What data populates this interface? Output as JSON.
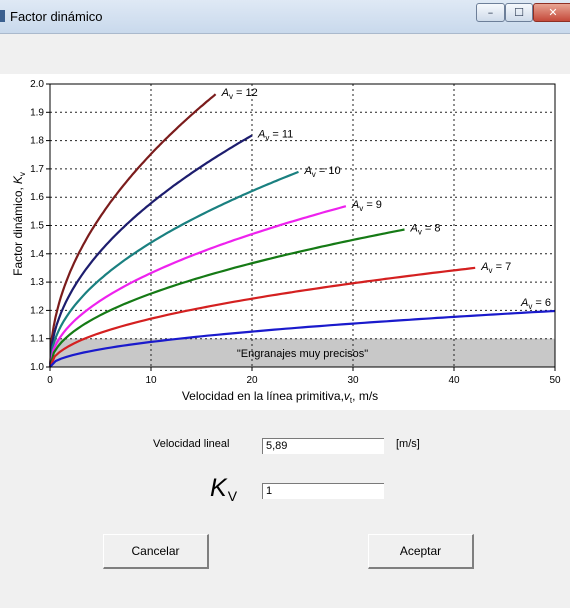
{
  "window": {
    "title": "Factor dinámico",
    "buttons": {
      "minimize": "–",
      "maximize": "☐",
      "close": "✕"
    }
  },
  "chart_data": {
    "type": "line",
    "xlabel": "Velocidad en la línea primitiva,",
    "xlabel_var": "v",
    "xlabel_sub": "t",
    "xlabel_unit": ", m/s",
    "ylabel": "Factor dinámico,",
    "ylabel_var": "K",
    "ylabel_sub": "v",
    "xlim": [
      0,
      50
    ],
    "ylim": [
      1.0,
      2.0
    ],
    "xticks": [
      "0",
      "10",
      "20",
      "30",
      "40",
      "50"
    ],
    "yticks": [
      "1.0",
      "1.1",
      "1.2",
      "1.3",
      "1.4",
      "1.5",
      "1.6",
      "1.7",
      "1.8",
      "1.9",
      "2.0"
    ],
    "grid": true,
    "shaded_band": {
      "label": "\"Engranajes muy precisos\"",
      "ymax": 1.1
    },
    "series": [
      {
        "name": "Av = 12",
        "label_var": "A",
        "label_sub": "v",
        "label_val": " = 12",
        "color": "#7b1c1c",
        "k": 0.238,
        "xmax": 16.4,
        "points": [
          [
            0,
            1.0
          ],
          [
            2,
            1.34
          ],
          [
            4,
            1.48
          ],
          [
            6,
            1.58
          ],
          [
            8,
            1.67
          ],
          [
            10,
            1.73
          ],
          [
            12,
            1.79
          ],
          [
            14,
            1.85
          ],
          [
            16.4,
            1.91
          ]
        ]
      },
      {
        "name": "Av = 11",
        "label_var": "A",
        "label_sub": "v",
        "label_val": " = 11",
        "color": "#1d1d6e",
        "k": 0.183,
        "xmax": 20.0,
        "points": [
          [
            0,
            1.0
          ],
          [
            2,
            1.26
          ],
          [
            4,
            1.37
          ],
          [
            6,
            1.45
          ],
          [
            8,
            1.52
          ],
          [
            10,
            1.58
          ],
          [
            12,
            1.63
          ],
          [
            14,
            1.68
          ],
          [
            16,
            1.73
          ],
          [
            18,
            1.77
          ],
          [
            20,
            1.8
          ]
        ]
      },
      {
        "name": "Av = 10",
        "label_var": "A",
        "label_sub": "v",
        "label_val": " = 10",
        "color": "#1a8080",
        "k": 0.139,
        "xmax": 24.6,
        "points": [
          [
            0,
            1.0
          ],
          [
            2,
            1.2
          ],
          [
            5,
            1.31
          ],
          [
            8,
            1.39
          ],
          [
            11,
            1.46
          ],
          [
            14,
            1.52
          ],
          [
            17,
            1.57
          ],
          [
            20,
            1.62
          ],
          [
            24.6,
            1.69
          ]
        ]
      },
      {
        "name": "Av = 9",
        "label_var": "A",
        "label_sub": "v",
        "label_val": " = 9",
        "color": "#ee22ee",
        "k": 0.105,
        "xmax": 29.3,
        "points": [
          [
            0,
            1.0
          ],
          [
            2,
            1.15
          ],
          [
            5,
            1.23
          ],
          [
            8,
            1.3
          ],
          [
            11,
            1.35
          ],
          [
            14,
            1.39
          ],
          [
            17,
            1.43
          ],
          [
            20,
            1.47
          ],
          [
            24,
            1.52
          ],
          [
            29.3,
            1.58
          ]
        ]
      },
      {
        "name": "Av = 8",
        "label_var": "A",
        "label_sub": "v",
        "label_val": " = 8",
        "color": "#157a15",
        "k": 0.082,
        "xmax": 35.1,
        "points": [
          [
            0,
            1.0
          ],
          [
            2,
            1.12
          ],
          [
            5,
            1.18
          ],
          [
            8,
            1.23
          ],
          [
            11,
            1.27
          ],
          [
            15,
            1.32
          ],
          [
            20,
            1.36
          ],
          [
            25,
            1.41
          ],
          [
            30,
            1.44
          ],
          [
            35.1,
            1.46
          ]
        ]
      },
      {
        "name": "Av = 7",
        "label_var": "A",
        "label_sub": "v",
        "label_val": " = 7",
        "color": "#d42020",
        "k": 0.054,
        "xmax": 42.1,
        "points": [
          [
            0,
            1.0
          ],
          [
            2,
            1.08
          ],
          [
            5,
            1.12
          ],
          [
            10,
            1.17
          ],
          [
            15,
            1.21
          ],
          [
            20,
            1.24
          ],
          [
            25,
            1.27
          ],
          [
            30,
            1.29
          ],
          [
            35,
            1.32
          ],
          [
            42.1,
            1.34
          ]
        ]
      },
      {
        "name": "Av = 6",
        "label_var": "A",
        "label_sub": "v",
        "label_val": " = 6",
        "color": "#1a1acc",
        "k": 0.028,
        "xmax": 50.0,
        "points": [
          [
            0,
            1.0
          ],
          [
            2,
            1.04
          ],
          [
            5,
            1.06
          ],
          [
            10,
            1.09
          ],
          [
            15,
            1.11
          ],
          [
            20,
            1.13
          ],
          [
            25,
            1.14
          ],
          [
            30,
            1.15
          ],
          [
            35,
            1.16
          ],
          [
            40,
            1.18
          ],
          [
            45,
            1.19
          ],
          [
            50,
            1.2
          ]
        ]
      }
    ]
  },
  "form": {
    "velocity_label": "Velocidad lineal",
    "velocity_value": "5,89",
    "velocity_unit": "[m/s]",
    "kv_symbol": "K",
    "kv_sub": "V",
    "kv_value": "1"
  },
  "buttons": {
    "cancel": "Cancelar",
    "accept": "Aceptar"
  }
}
